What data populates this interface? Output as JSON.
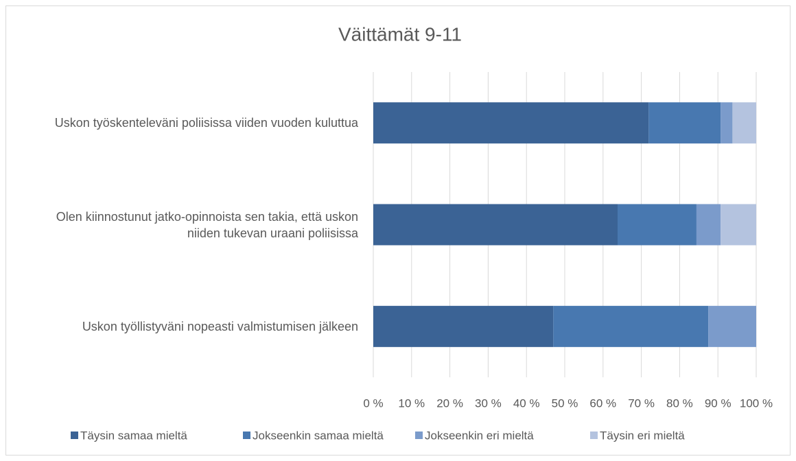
{
  "chart_data": {
    "type": "bar",
    "orientation": "horizontal",
    "stacked": true,
    "title": "Väittämät 9-11",
    "categories": [
      "Uskon työskenteleväni poliisissa viiden vuoden kuluttua",
      "Olen kiinnostunut jatko-opinnoista sen takia, että uskon niiden tukevan uraani poliisissa",
      "Uskon työllistyväni nopeasti valmistumisen jälkeen"
    ],
    "series": [
      {
        "name": "Täysin samaa mieltä",
        "color": "#3b6395",
        "values": [
          71.9,
          63.8,
          47.0
        ]
      },
      {
        "name": "Jokseenkin samaa mieltä",
        "color": "#4878b0",
        "values": [
          18.8,
          20.6,
          40.5
        ]
      },
      {
        "name": "Jokseenkin eri mieltä",
        "color": "#7b9bcb",
        "values": [
          3.1,
          6.3,
          12.5
        ]
      },
      {
        "name": "Täysin eri mieltä",
        "color": "#b4c3df",
        "values": [
          6.2,
          9.3,
          0
        ]
      }
    ],
    "xlim": [
      0,
      100
    ],
    "xticks": [
      {
        "value": 0,
        "label": "0 %"
      },
      {
        "value": 10,
        "label": "10 %"
      },
      {
        "value": 20,
        "label": "20 %"
      },
      {
        "value": 30,
        "label": "30 %"
      },
      {
        "value": 40,
        "label": "40 %"
      },
      {
        "value": 50,
        "label": "50 %"
      },
      {
        "value": 60,
        "label": "60 %"
      },
      {
        "value": 70,
        "label": "70 %"
      },
      {
        "value": 80,
        "label": "80 %"
      },
      {
        "value": 90,
        "label": "90 %"
      },
      {
        "value": 100,
        "label": "100 %"
      }
    ],
    "grid": true,
    "legend": "bottom"
  }
}
